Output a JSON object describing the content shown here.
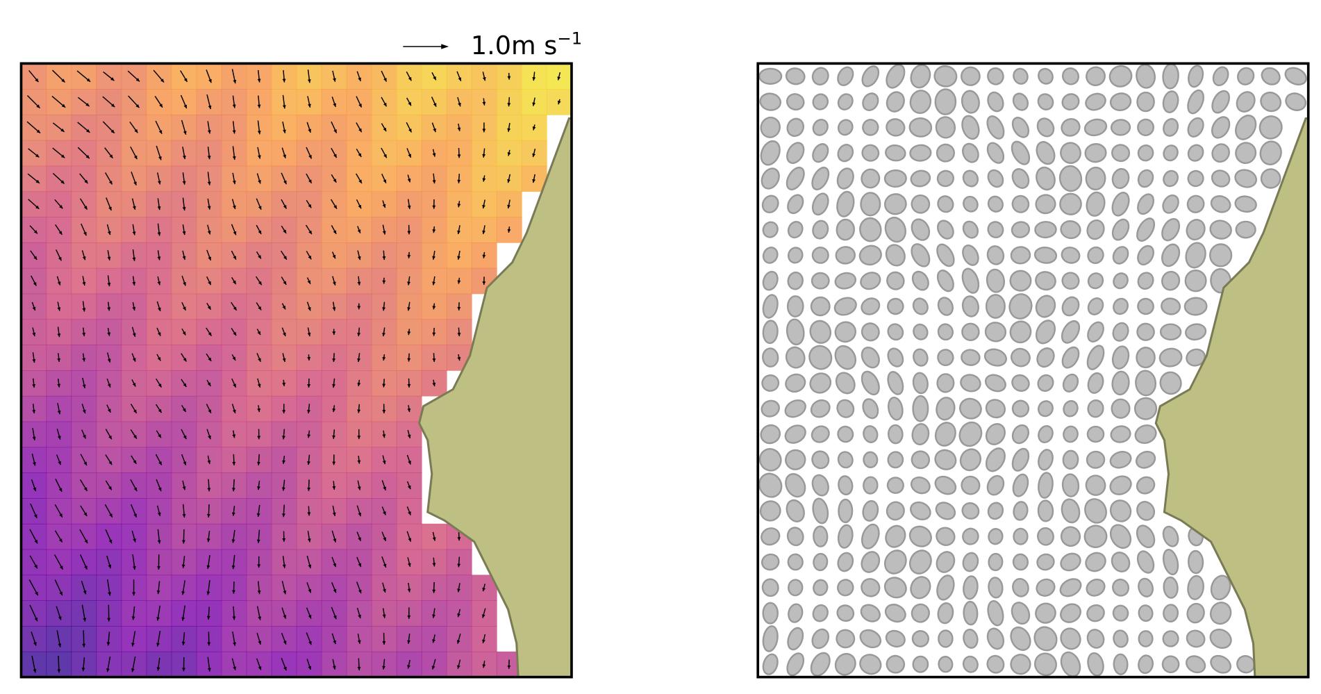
{
  "key": {
    "label": "1.0m s",
    "exponent": "−1"
  }
}
